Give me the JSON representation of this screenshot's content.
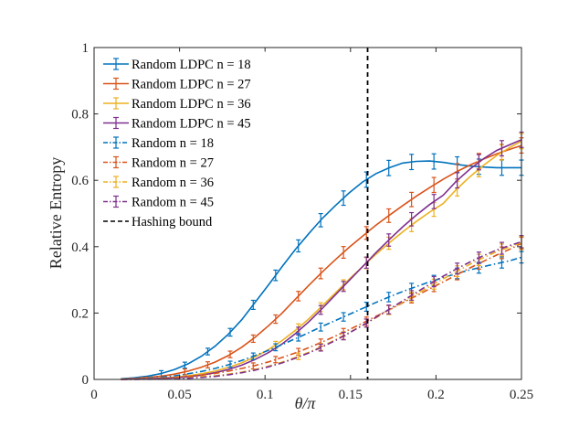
{
  "chart_data": {
    "type": "line",
    "xlabel": "θ/π",
    "ylabel": "Relative Entropy",
    "xlim": [
      0,
      0.25
    ],
    "ylim": [
      0,
      1
    ],
    "xticks": [
      "0",
      "0.05",
      "0.1",
      "0.15",
      "0.2",
      "0.25"
    ],
    "yticks": [
      "0",
      "0.2",
      "0.4",
      "0.6",
      "0.8",
      "1"
    ],
    "grid": false,
    "legend_position": "top-left",
    "x": [
      0.0157,
      0.0236,
      0.0314,
      0.0393,
      0.0471,
      0.055,
      0.0628,
      0.0707,
      0.0785,
      0.0864,
      0.0942,
      0.1021,
      0.11,
      0.1178,
      0.1257,
      0.1335,
      0.1414,
      0.1492,
      0.1571,
      0.1649,
      0.1728,
      0.1806,
      0.1885,
      0.1963,
      0.2042,
      0.212,
      0.2199,
      0.2278,
      0.2356,
      0.2435,
      0.25
    ],
    "series": [
      {
        "name": "Random LDPC n = 18",
        "color": "#0072BD",
        "dash": "solid",
        "error_x": [
          0.0393,
          0.0531,
          0.0665,
          0.0796,
          0.0931,
          0.1062,
          0.1195,
          0.1326,
          0.1459,
          0.1593,
          0.1724,
          0.1857,
          0.1988,
          0.2124,
          0.2251,
          0.2385,
          0.25
        ],
        "values": [
          0.002,
          0.005,
          0.01,
          0.018,
          0.03,
          0.047,
          0.07,
          0.1,
          0.136,
          0.18,
          0.232,
          0.285,
          0.34,
          0.392,
          0.44,
          0.485,
          0.525,
          0.562,
          0.595,
          0.62,
          0.638,
          0.652,
          0.657,
          0.658,
          0.654,
          0.648,
          0.643,
          0.64,
          0.638,
          0.638,
          0.638
        ]
      },
      {
        "name": "Random LDPC n = 27",
        "color": "#D95319",
        "dash": "solid",
        "error_x": [
          0.0531,
          0.0665,
          0.0796,
          0.0931,
          0.1062,
          0.1195,
          0.1326,
          0.1459,
          0.1593,
          0.1724,
          0.1857,
          0.1988,
          0.2124,
          0.2251,
          0.2385,
          0.25
        ],
        "values": [
          0.001,
          0.003,
          0.006,
          0.01,
          0.016,
          0.025,
          0.037,
          0.052,
          0.072,
          0.097,
          0.127,
          0.162,
          0.2,
          0.242,
          0.284,
          0.324,
          0.362,
          0.398,
          0.432,
          0.465,
          0.495,
          0.524,
          0.552,
          0.578,
          0.603,
          0.626,
          0.646,
          0.664,
          0.68,
          0.694,
          0.705
        ]
      },
      {
        "name": "Random LDPC n = 36",
        "color": "#EDB120",
        "dash": "solid",
        "error_x": [
          0.1062,
          0.1195,
          0.1326,
          0.1459,
          0.1593,
          0.1724,
          0.1857,
          0.1988,
          0.2124,
          0.2251,
          0.2385,
          0.25
        ],
        "values": [
          0.0005,
          0.001,
          0.002,
          0.004,
          0.007,
          0.011,
          0.017,
          0.025,
          0.036,
          0.05,
          0.068,
          0.09,
          0.117,
          0.148,
          0.183,
          0.222,
          0.262,
          0.302,
          0.34,
          0.377,
          0.412,
          0.445,
          0.476,
          0.504,
          0.53,
          0.573,
          0.611,
          0.645,
          0.675,
          0.7,
          0.718
        ]
      },
      {
        "name": "Random LDPC n = 45",
        "color": "#7E2F8E",
        "dash": "solid",
        "error_x": [
          0.1195,
          0.1326,
          0.1459,
          0.1593,
          0.1724,
          0.1857,
          0.1988,
          0.2124,
          0.2251,
          0.2385,
          0.25
        ],
        "values": [
          0.0004,
          0.0008,
          0.0015,
          0.003,
          0.005,
          0.008,
          0.013,
          0.02,
          0.03,
          0.043,
          0.06,
          0.081,
          0.107,
          0.138,
          0.174,
          0.214,
          0.256,
          0.298,
          0.34,
          0.382,
          0.422,
          0.46,
          0.495,
          0.527,
          0.555,
          0.598,
          0.634,
          0.665,
          0.69,
          0.708,
          0.722
        ]
      },
      {
        "name": "Random n = 18",
        "color": "#0072BD",
        "dash": "dashdot",
        "error_x": [
          0.0796,
          0.0931,
          0.1062,
          0.1195,
          0.1326,
          0.1459,
          0.1593,
          0.1724,
          0.1857,
          0.1988,
          0.2124,
          0.2251,
          0.2385,
          0.25
        ],
        "values": [
          0.0008,
          0.002,
          0.004,
          0.007,
          0.011,
          0.017,
          0.024,
          0.033,
          0.044,
          0.057,
          0.072,
          0.088,
          0.105,
          0.123,
          0.141,
          0.16,
          0.178,
          0.196,
          0.214,
          0.232,
          0.249,
          0.265,
          0.28,
          0.294,
          0.307,
          0.319,
          0.33,
          0.34,
          0.349,
          0.358,
          0.368
        ]
      },
      {
        "name": "Random n = 27",
        "color": "#D95319",
        "dash": "dashdot",
        "error_x": [
          0.0931,
          0.1062,
          0.1195,
          0.1326,
          0.1459,
          0.1593,
          0.1724,
          0.1857,
          0.1988,
          0.2124,
          0.2251,
          0.2385,
          0.25
        ],
        "values": [
          0.0004,
          0.001,
          0.002,
          0.004,
          0.006,
          0.009,
          0.013,
          0.018,
          0.025,
          0.033,
          0.042,
          0.053,
          0.066,
          0.08,
          0.096,
          0.113,
          0.131,
          0.15,
          0.17,
          0.19,
          0.21,
          0.231,
          0.252,
          0.273,
          0.294,
          0.315,
          0.336,
          0.356,
          0.375,
          0.393,
          0.41
        ]
      },
      {
        "name": "Random n = 36",
        "color": "#EDB120",
        "dash": "dashdot",
        "error_x": [
          0.1195,
          0.1326,
          0.1459,
          0.1593,
          0.1724,
          0.1857,
          0.1988,
          0.2124,
          0.2251,
          0.2385,
          0.25
        ],
        "values": [
          0.0002,
          0.0005,
          0.001,
          0.002,
          0.003,
          0.005,
          0.008,
          0.011,
          0.016,
          0.022,
          0.03,
          0.04,
          0.052,
          0.066,
          0.082,
          0.1,
          0.12,
          0.141,
          0.163,
          0.186,
          0.21,
          0.233,
          0.257,
          0.28,
          0.303,
          0.325,
          0.347,
          0.367,
          0.385,
          0.4,
          0.412
        ]
      },
      {
        "name": "Random n = 45",
        "color": "#7E2F8E",
        "dash": "dashdot",
        "error_x": [
          0.1326,
          0.1459,
          0.1593,
          0.1724,
          0.1857,
          0.1988,
          0.2124,
          0.2251,
          0.2385,
          0.25
        ],
        "values": [
          0.0001,
          0.0003,
          0.0006,
          0.0012,
          0.002,
          0.0035,
          0.006,
          0.009,
          0.014,
          0.02,
          0.028,
          0.038,
          0.05,
          0.064,
          0.08,
          0.098,
          0.118,
          0.14,
          0.163,
          0.187,
          0.212,
          0.237,
          0.262,
          0.287,
          0.311,
          0.333,
          0.354,
          0.373,
          0.39,
          0.404,
          0.415
        ]
      },
      {
        "name": "Hashing bound",
        "color": "#000000",
        "dash": "dashed",
        "type": "vline",
        "x_value": 0.16
      }
    ]
  }
}
